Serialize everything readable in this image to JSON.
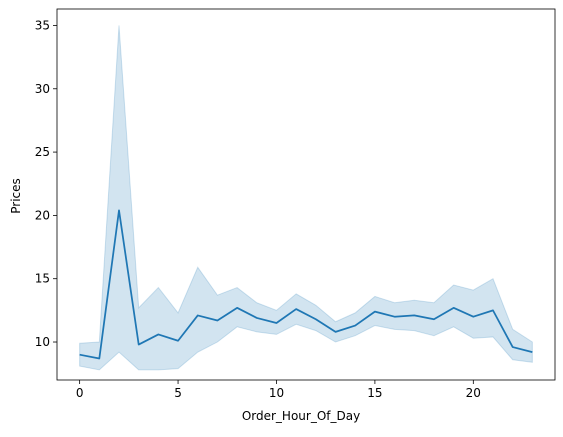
{
  "chart_data": {
    "type": "line",
    "title": "",
    "xlabel": "Order_Hour_Of_Day",
    "ylabel": "Prices",
    "xlim": [
      -1.15,
      24.15
    ],
    "ylim": [
      7.0,
      36.3
    ],
    "x_ticks": [
      0,
      5,
      10,
      15,
      20
    ],
    "x_tick_labels": [
      "0",
      "5",
      "10",
      "15",
      "20"
    ],
    "y_ticks": [
      10,
      15,
      20,
      25,
      30,
      35
    ],
    "y_tick_labels": [
      "10",
      "15",
      "20",
      "25",
      "30",
      "35"
    ],
    "grid": false,
    "legend": "none",
    "series": [
      {
        "x": [
          0,
          1,
          2,
          3,
          4,
          5,
          6,
          7,
          8,
          9,
          10,
          11,
          12,
          13,
          14,
          15,
          16,
          17,
          18,
          19,
          20,
          21,
          22,
          23
        ],
        "y": [
          9.0,
          8.7,
          20.4,
          9.8,
          10.6,
          10.1,
          12.1,
          11.7,
          12.7,
          11.9,
          11.5,
          12.6,
          11.8,
          10.8,
          11.3,
          12.4,
          12.0,
          12.1,
          11.8,
          12.7,
          12.0,
          12.5,
          9.6,
          9.2
        ],
        "ci_lower": [
          8.1,
          7.8,
          9.2,
          7.8,
          7.8,
          7.9,
          9.2,
          10.0,
          11.2,
          10.8,
          10.6,
          11.4,
          10.9,
          10.0,
          10.5,
          11.3,
          11.0,
          10.9,
          10.5,
          11.2,
          10.3,
          10.4,
          8.6,
          8.4
        ],
        "ci_upper": [
          9.9,
          10.0,
          35.0,
          12.7,
          14.3,
          12.3,
          15.9,
          13.7,
          14.3,
          13.1,
          12.5,
          13.8,
          12.9,
          11.6,
          12.3,
          13.6,
          13.1,
          13.3,
          13.1,
          14.5,
          14.1,
          15.0,
          11.0,
          10.0
        ]
      }
    ],
    "colors": {
      "line": "#1f77b4",
      "band": "#1f77b4",
      "axes": "#000000"
    }
  }
}
